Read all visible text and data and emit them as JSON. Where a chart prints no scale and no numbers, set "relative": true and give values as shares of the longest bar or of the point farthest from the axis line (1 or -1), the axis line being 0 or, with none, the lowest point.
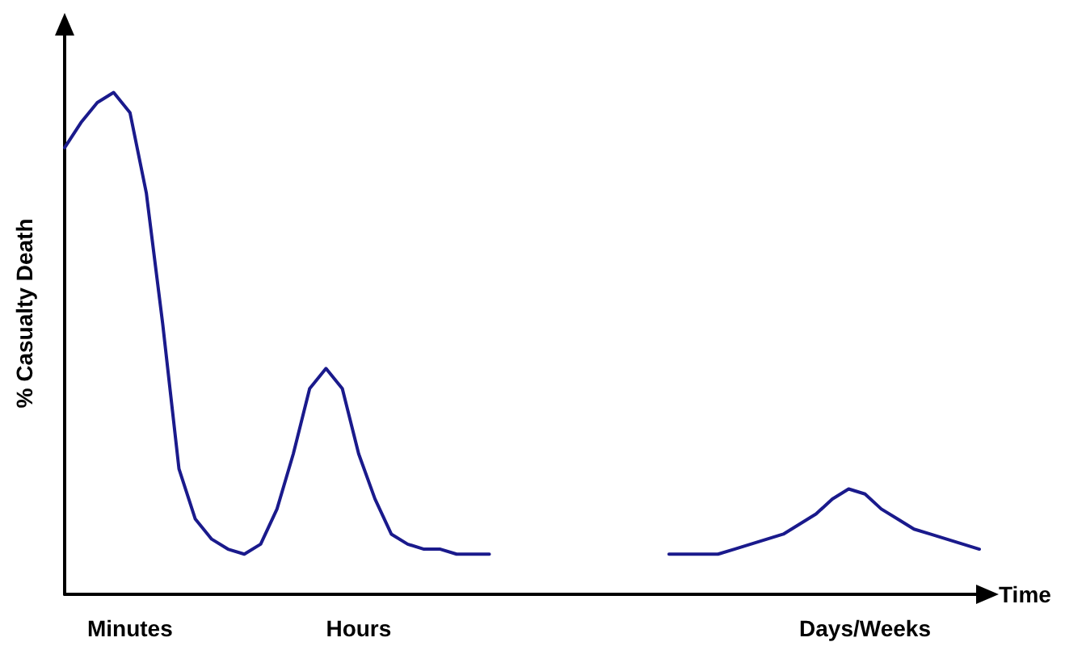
{
  "chart_data": {
    "type": "line",
    "relative": true,
    "xlabel": "Time",
    "ylabel": "% Casualty Death",
    "marker": "none",
    "line_style": "solid",
    "categories": [
      null,
      null,
      null,
      null,
      "Minutes",
      null,
      null,
      null,
      null,
      null,
      null,
      null,
      null,
      null,
      null,
      null,
      null,
      null,
      "Hours",
      null,
      null,
      null,
      null,
      null,
      null,
      null,
      null,
      null,
      null,
      null,
      null,
      null,
      null,
      null,
      null,
      null,
      null,
      null,
      null,
      null,
      null,
      null,
      null,
      null,
      null,
      null,
      null,
      null,
      null,
      "Days/Weeks",
      null,
      null,
      null,
      null,
      null,
      null,
      null
    ],
    "series": [
      {
        "color": "#1a1a8c",
        "values": [
          0.89,
          0.94,
          0.98,
          1.0,
          0.96,
          0.8,
          0.54,
          0.25,
          0.15,
          0.11,
          0.09,
          0.08,
          0.1,
          0.17,
          0.28,
          0.41,
          0.45,
          0.41,
          0.28,
          0.19,
          0.12,
          0.1,
          0.09,
          0.09,
          0.08,
          0.08,
          0.08,
          null,
          null,
          null,
          null,
          null,
          null,
          null,
          null,
          null,
          null,
          0.08,
          0.08,
          0.08,
          0.08,
          0.09,
          0.1,
          0.11,
          0.12,
          0.14,
          0.16,
          0.19,
          0.21,
          0.2,
          0.17,
          0.15,
          0.13,
          0.12,
          0.11,
          0.1,
          0.09
        ]
      }
    ]
  }
}
